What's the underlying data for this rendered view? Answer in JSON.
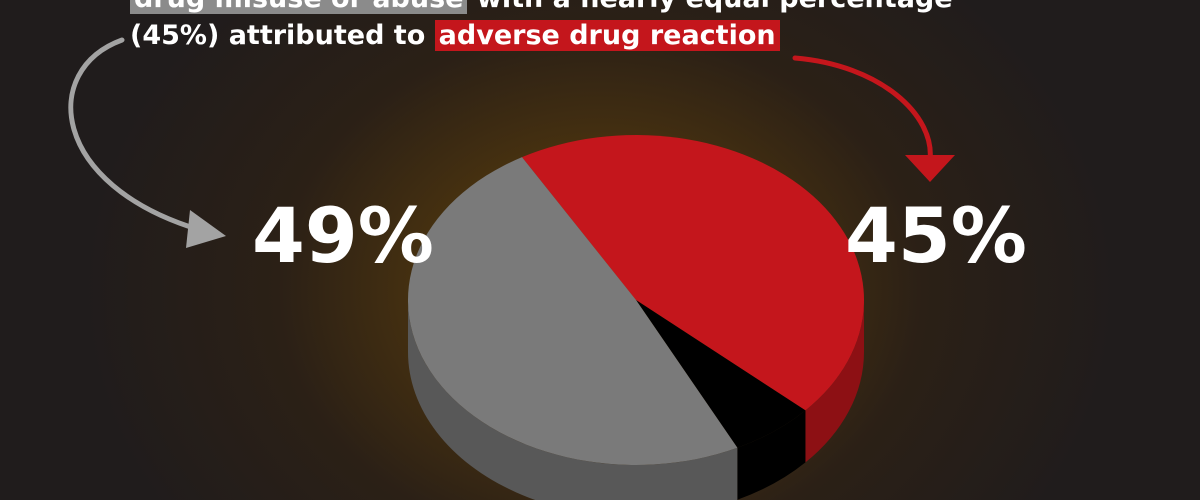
{
  "caption": {
    "line1": "drug misuse or abuse",
    "line1_rest": " with a nearly equal percentage",
    "line2_pre": "(45%) attributed to ",
    "line2_highlight": "adverse drug reaction"
  },
  "chart_data": {
    "type": "pie",
    "slices": [
      {
        "value": 49,
        "label": "49%",
        "color": "#7a7a7a"
      },
      {
        "value": 45,
        "label": "45%",
        "color": "#c4161c"
      },
      {
        "value": 6,
        "label": "",
        "color": "#000000"
      }
    ],
    "style": "3d-tilted"
  },
  "colors": {
    "highlight_gray": "#8b8b8b",
    "highlight_red": "#c4161c",
    "arrow_gray": "#a3a3a3",
    "arrow_red": "#c4161c"
  }
}
